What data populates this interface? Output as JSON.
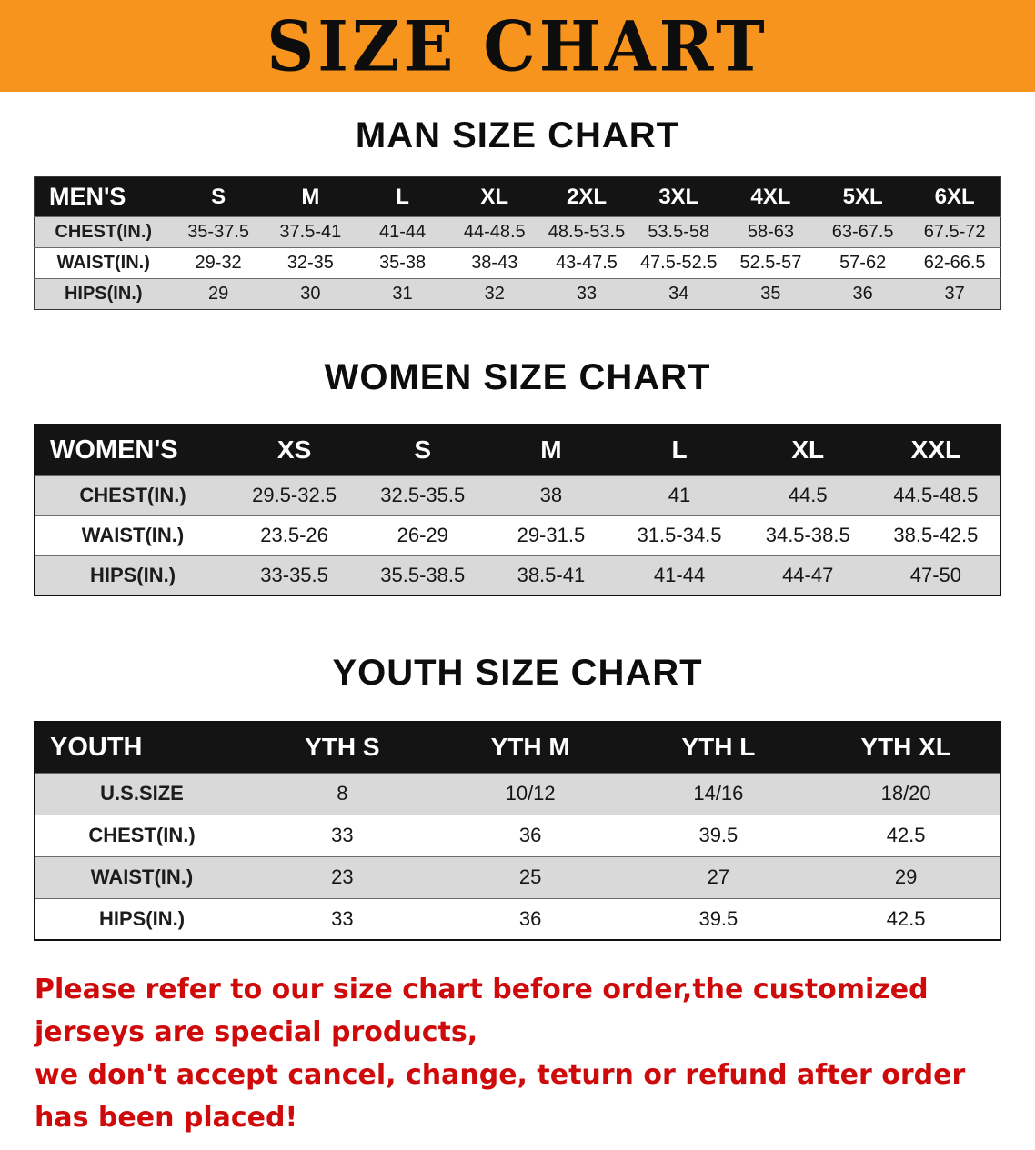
{
  "banner": {
    "title": "SIZE CHART"
  },
  "colors": {
    "banner_bg": "#F7941E",
    "table_header_bg": "#141414",
    "row_stripe": "#D9D9D9",
    "disclaimer_red": "#CF0A0A"
  },
  "sections": [
    {
      "kind": "men",
      "heading": "MAN SIZE CHART",
      "table": {
        "header": [
          "MEN'S",
          "S",
          "M",
          "L",
          "XL",
          "2XL",
          "3XL",
          "4XL",
          "5XL",
          "6XL"
        ],
        "rows": [
          [
            "CHEST(IN.)",
            "35-37.5",
            "37.5-41",
            "41-44",
            "44-48.5",
            "48.5-53.5",
            "53.5-58",
            "58-63",
            "63-67.5",
            "67.5-72"
          ],
          [
            "WAIST(IN.)",
            "29-32",
            "32-35",
            "35-38",
            "38-43",
            "43-47.5",
            "47.5-52.5",
            "52.5-57",
            "57-62",
            "62-66.5"
          ],
          [
            "HIPS(IN.)",
            "29",
            "30",
            "31",
            "32",
            "33",
            "34",
            "35",
            "36",
            "37"
          ]
        ]
      }
    },
    {
      "kind": "women",
      "heading": "WOMEN SIZE CHART",
      "table": {
        "header": [
          "WOMEN'S",
          "XS",
          "S",
          "M",
          "L",
          "XL",
          "XXL"
        ],
        "rows": [
          [
            "CHEST(IN.)",
            "29.5-32.5",
            "32.5-35.5",
            "38",
            "41",
            "44.5",
            "44.5-48.5"
          ],
          [
            "WAIST(IN.)",
            "23.5-26",
            "26-29",
            "29-31.5",
            "31.5-34.5",
            "34.5-38.5",
            "38.5-42.5"
          ],
          [
            "HIPS(IN.)",
            "33-35.5",
            "35.5-38.5",
            "38.5-41",
            "41-44",
            "44-47",
            "47-50"
          ]
        ]
      }
    },
    {
      "kind": "youth",
      "heading": "YOUTH SIZE CHART",
      "table": {
        "header": [
          "YOUTH",
          "YTH S",
          "YTH M",
          "YTH L",
          "YTH XL"
        ],
        "rows": [
          [
            "U.S.SIZE",
            "8",
            "10/12",
            "14/16",
            "18/20"
          ],
          [
            "CHEST(IN.)",
            "33",
            "36",
            "39.5",
            "42.5"
          ],
          [
            "WAIST(IN.)",
            "23",
            "25",
            "27",
            "29"
          ],
          [
            "HIPS(IN.)",
            "33",
            "36",
            "39.5",
            "42.5"
          ]
        ]
      }
    }
  ],
  "disclaimer": {
    "line1": "Please refer to our size chart before order,the customized jerseys are special products,",
    "line2": "we don't accept cancel, change, teturn or refund after order has been placed!"
  }
}
